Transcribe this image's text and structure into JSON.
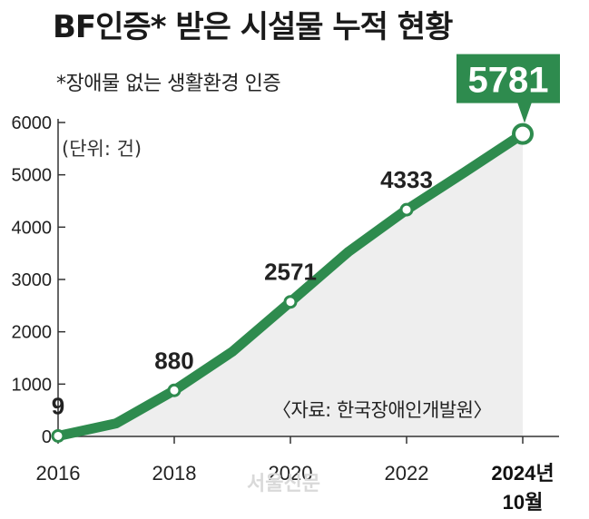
{
  "chart_data": {
    "type": "area",
    "title": "BF인증* 받은 시설물 누적 현황",
    "subtitle": "*장애물 없는 생활환경 인증",
    "unit_note": "(단위: 건)",
    "source_note": "〈자료: 한국장애인개발원〉",
    "watermark": "서울신문",
    "x": [
      2016,
      2017,
      2018,
      2019,
      2020,
      2021,
      2022,
      2023,
      2024
    ],
    "x_tick_values": [
      2016,
      2018,
      2020,
      2022,
      2024
    ],
    "x_tick_labels": [
      "2016",
      "2018",
      "2020",
      "2022",
      "2024년"
    ],
    "x_tick_label_extra": "10월",
    "series": [
      {
        "values": [
          9,
          250,
          880,
          1620,
          2571,
          3530,
          4333,
          5050,
          5781
        ]
      }
    ],
    "data_labels": [
      {
        "x": 2016,
        "label": "9"
      },
      {
        "x": 2018,
        "label": "880"
      },
      {
        "x": 2020,
        "label": "2571"
      },
      {
        "x": 2022,
        "label": "4333"
      },
      {
        "x": 2024,
        "label": "5781"
      }
    ],
    "y_ticks": [
      0,
      1000,
      2000,
      3000,
      4000,
      5000,
      6000
    ],
    "ylim": [
      0,
      6000
    ],
    "xlim": [
      2016,
      2024
    ],
    "grid": false,
    "line_color": "#2e8b4e",
    "callout_color": "#2e8b4e",
    "area_color": "#eeeeee"
  }
}
